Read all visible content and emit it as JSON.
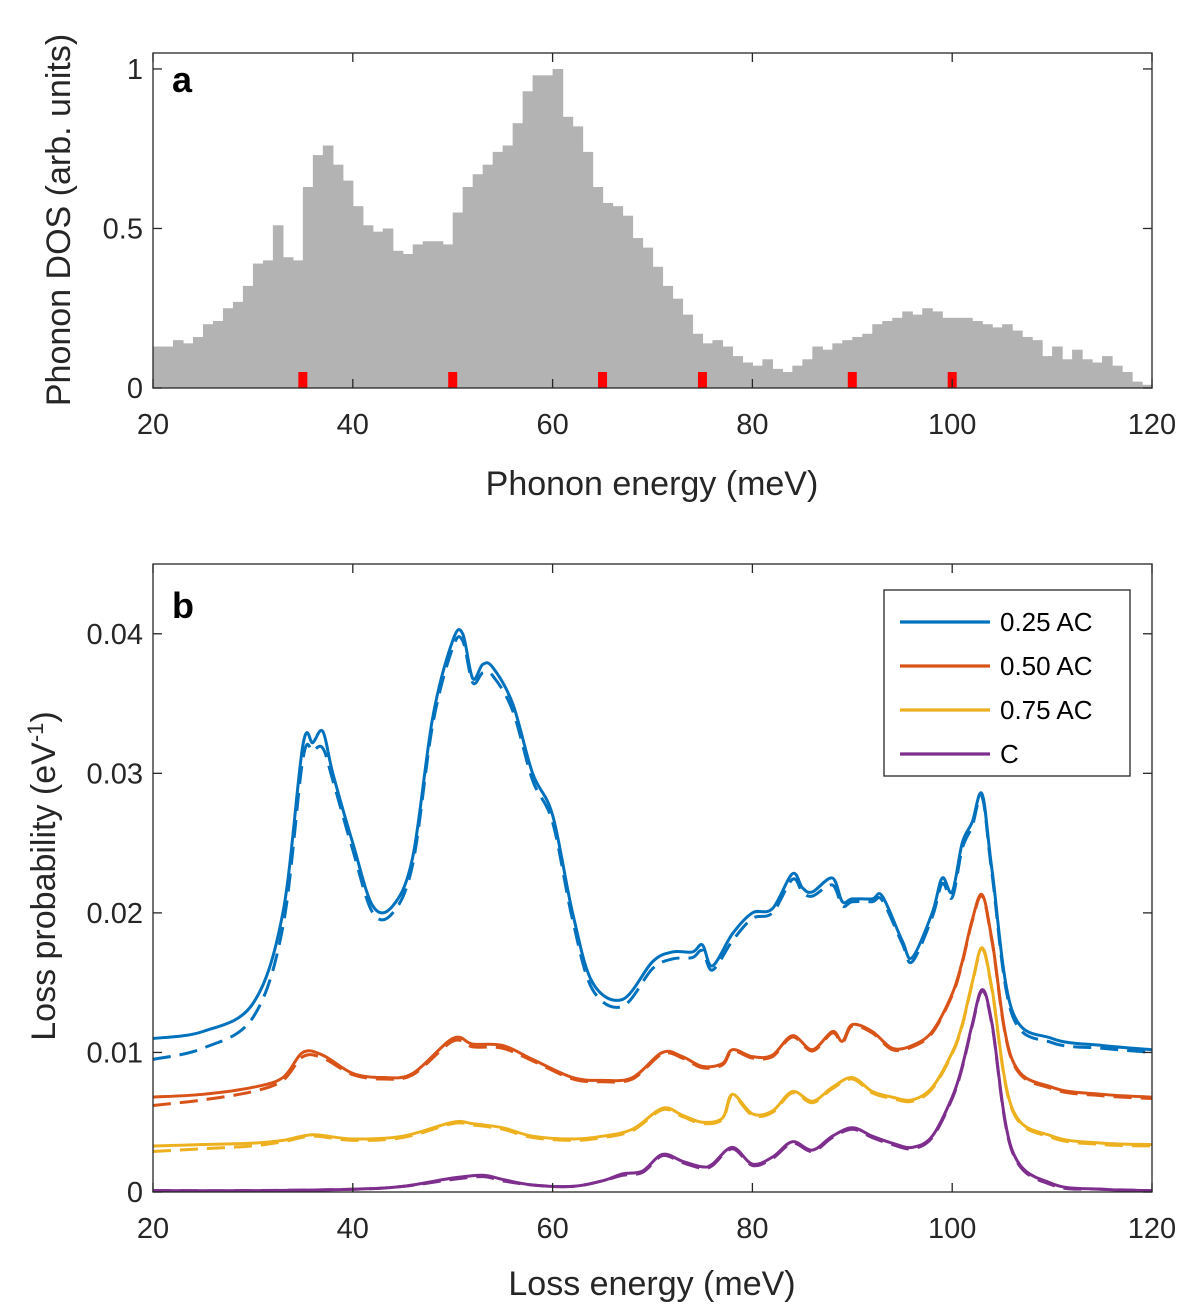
{
  "chart_data": [
    {
      "type": "bar",
      "panel_label": "a",
      "xlabel": "Phonon energy (meV)",
      "ylabel": "Phonon DOS (arb. units)",
      "xlim": [
        20,
        120
      ],
      "ylim": [
        0,
        1.05
      ],
      "xticks": [
        "20",
        "40",
        "60",
        "80",
        "100",
        "120"
      ],
      "yticks": [
        "0",
        "0.5",
        "1"
      ],
      "bar_color": "#b3b3b3",
      "marker_color": "#ff0000",
      "bin_start": 20,
      "bin_width": 1,
      "values": [
        0.13,
        0.13,
        0.15,
        0.14,
        0.16,
        0.2,
        0.21,
        0.25,
        0.27,
        0.32,
        0.39,
        0.4,
        0.51,
        0.41,
        0.4,
        0.63,
        0.73,
        0.76,
        0.7,
        0.65,
        0.57,
        0.51,
        0.49,
        0.5,
        0.43,
        0.42,
        0.45,
        0.46,
        0.46,
        0.45,
        0.55,
        0.63,
        0.67,
        0.7,
        0.74,
        0.76,
        0.83,
        0.93,
        0.98,
        0.98,
        1.0,
        0.85,
        0.82,
        0.74,
        0.63,
        0.58,
        0.57,
        0.54,
        0.47,
        0.44,
        0.38,
        0.32,
        0.28,
        0.23,
        0.17,
        0.14,
        0.15,
        0.13,
        0.1,
        0.08,
        0.07,
        0.09,
        0.06,
        0.05,
        0.07,
        0.09,
        0.13,
        0.12,
        0.14,
        0.15,
        0.16,
        0.17,
        0.2,
        0.21,
        0.22,
        0.24,
        0.23,
        0.25,
        0.24,
        0.22,
        0.22,
        0.22,
        0.21,
        0.2,
        0.19,
        0.2,
        0.18,
        0.16,
        0.15,
        0.1,
        0.13,
        0.09,
        0.12,
        0.09,
        0.08,
        0.1,
        0.07,
        0.05,
        0.02,
        0.01
      ],
      "markers": [
        35,
        50,
        65,
        75,
        90,
        100
      ]
    },
    {
      "type": "line",
      "panel_label": "b",
      "xlabel": "Loss energy (meV)",
      "ylabel": "Loss probability (eV",
      "ylabel_sup": "-1",
      "ylabel_end": ")",
      "xlim": [
        20,
        120
      ],
      "ylim": [
        0,
        0.045
      ],
      "xticks": [
        "20",
        "40",
        "60",
        "80",
        "100",
        "120"
      ],
      "yticks": [
        "0",
        "0.01",
        "0.02",
        "0.03",
        "0.04"
      ],
      "legend_position": "top-right",
      "series": [
        {
          "name": "0.25 AC",
          "color": "#0072bd",
          "x": [
            20,
            25,
            30,
            33,
            35,
            36,
            37,
            38,
            40,
            42,
            44,
            46,
            48,
            50,
            51,
            52,
            53,
            54,
            56,
            58,
            60,
            62,
            64,
            67,
            70,
            72,
            74,
            75,
            76,
            78,
            80,
            82,
            84,
            85,
            86,
            88,
            89,
            90,
            92,
            93,
            95,
            96,
            98,
            99,
            100,
            101,
            102,
            103,
            104,
            106,
            110,
            115,
            120
          ],
          "solid": [
            0.011,
            0.0115,
            0.0135,
            0.02,
            0.032,
            0.0322,
            0.033,
            0.03,
            0.025,
            0.0205,
            0.0205,
            0.024,
            0.034,
            0.0395,
            0.04,
            0.0368,
            0.0378,
            0.0376,
            0.035,
            0.03,
            0.027,
            0.02,
            0.015,
            0.0138,
            0.0165,
            0.0172,
            0.0172,
            0.0177,
            0.0162,
            0.0185,
            0.02,
            0.0203,
            0.0228,
            0.0218,
            0.0215,
            0.0225,
            0.0208,
            0.021,
            0.021,
            0.0212,
            0.018,
            0.0168,
            0.02,
            0.0225,
            0.0215,
            0.025,
            0.0265,
            0.0285,
            0.023,
            0.013,
            0.011,
            0.0105,
            0.0102
          ],
          "dashed": [
            0.0095,
            0.0103,
            0.0125,
            0.019,
            0.031,
            0.0316,
            0.0318,
            0.0295,
            0.0245,
            0.02,
            0.02,
            0.0235,
            0.0335,
            0.039,
            0.0395,
            0.0365,
            0.0372,
            0.037,
            0.0345,
            0.0295,
            0.0265,
            0.0195,
            0.0145,
            0.0133,
            0.016,
            0.0167,
            0.0168,
            0.0173,
            0.0159,
            0.018,
            0.0196,
            0.02,
            0.0224,
            0.0215,
            0.0212,
            0.022,
            0.0205,
            0.0208,
            0.0208,
            0.0209,
            0.0178,
            0.0165,
            0.0197,
            0.0221,
            0.0211,
            0.0246,
            0.0262,
            0.0283,
            0.0227,
            0.0127,
            0.0107,
            0.0103,
            0.01
          ]
        },
        {
          "name": "0.50 AC",
          "color": "#d95319",
          "x": [
            20,
            25,
            30,
            33,
            35,
            37,
            40,
            43,
            46,
            50,
            52,
            55,
            58,
            62,
            65,
            68,
            71,
            73,
            75,
            77,
            78,
            80,
            82,
            84,
            86,
            88,
            89,
            90,
            92,
            94,
            96,
            98,
            100,
            101,
            102,
            103,
            104,
            106,
            110,
            115,
            120
          ],
          "solid": [
            0.0068,
            0.007,
            0.0075,
            0.0082,
            0.01,
            0.0098,
            0.0085,
            0.0082,
            0.0085,
            0.011,
            0.0106,
            0.0105,
            0.0095,
            0.0082,
            0.008,
            0.0082,
            0.01,
            0.0097,
            0.009,
            0.0092,
            0.0102,
            0.0097,
            0.0098,
            0.0112,
            0.0102,
            0.0115,
            0.0108,
            0.012,
            0.0115,
            0.0103,
            0.0105,
            0.0115,
            0.0142,
            0.0165,
            0.0195,
            0.0213,
            0.018,
            0.0095,
            0.0075,
            0.007,
            0.0068
          ],
          "dashed": [
            0.0062,
            0.0066,
            0.0072,
            0.008,
            0.0097,
            0.0096,
            0.0084,
            0.0081,
            0.0084,
            0.0108,
            0.0104,
            0.0103,
            0.0094,
            0.0081,
            0.0079,
            0.0081,
            0.0099,
            0.0096,
            0.0089,
            0.0091,
            0.0101,
            0.0096,
            0.0097,
            0.0111,
            0.0101,
            0.0114,
            0.0107,
            0.0119,
            0.0114,
            0.0102,
            0.0104,
            0.0114,
            0.0141,
            0.0164,
            0.0194,
            0.0212,
            0.0179,
            0.0094,
            0.0074,
            0.0069,
            0.0067
          ]
        },
        {
          "name": "0.75 AC",
          "color": "#edb120",
          "x": [
            20,
            25,
            30,
            33,
            36,
            40,
            45,
            50,
            52,
            55,
            58,
            62,
            65,
            68,
            71,
            73,
            75,
            77,
            78,
            80,
            82,
            84,
            86,
            88,
            90,
            92,
            94,
            96,
            98,
            100,
            101,
            102,
            103,
            104,
            106,
            110,
            115,
            120
          ],
          "solid": [
            0.0033,
            0.0034,
            0.0035,
            0.0037,
            0.0041,
            0.0038,
            0.004,
            0.005,
            0.0049,
            0.0046,
            0.004,
            0.0038,
            0.004,
            0.0045,
            0.006,
            0.0055,
            0.005,
            0.0053,
            0.007,
            0.0056,
            0.0058,
            0.0072,
            0.0065,
            0.0075,
            0.0082,
            0.0072,
            0.0068,
            0.0066,
            0.0075,
            0.01,
            0.012,
            0.015,
            0.0175,
            0.0145,
            0.006,
            0.004,
            0.0035,
            0.0034
          ],
          "dashed": [
            0.0029,
            0.0031,
            0.0033,
            0.0036,
            0.004,
            0.0037,
            0.0039,
            0.0049,
            0.0048,
            0.0045,
            0.0039,
            0.0037,
            0.0039,
            0.0044,
            0.0059,
            0.0054,
            0.0049,
            0.0052,
            0.0069,
            0.0055,
            0.0057,
            0.0071,
            0.0064,
            0.0074,
            0.0081,
            0.0071,
            0.0067,
            0.0065,
            0.0074,
            0.0099,
            0.0119,
            0.0149,
            0.0174,
            0.0144,
            0.0059,
            0.0039,
            0.0034,
            0.0033
          ]
        },
        {
          "name": "C",
          "color": "#7e2f8e",
          "x": [
            20,
            30,
            40,
            45,
            50,
            53,
            55,
            58,
            62,
            65,
            67,
            69,
            71,
            73,
            75,
            76,
            78,
            80,
            82,
            84,
            86,
            88,
            90,
            92,
            94,
            96,
            98,
            100,
            101,
            102,
            103,
            104,
            106,
            110,
            115,
            120
          ],
          "solid": [
            0.0001,
            0.0001,
            0.0002,
            0.0004,
            0.001,
            0.0012,
            0.0009,
            0.0005,
            0.0004,
            0.0008,
            0.0013,
            0.0015,
            0.0027,
            0.0022,
            0.0018,
            0.002,
            0.0032,
            0.002,
            0.0025,
            0.0036,
            0.003,
            0.004,
            0.0046,
            0.004,
            0.0035,
            0.0032,
            0.004,
            0.0068,
            0.009,
            0.012,
            0.0145,
            0.012,
            0.003,
            0.0006,
            0.0002,
            0.0001
          ],
          "dashed": [
            0.0001,
            0.0001,
            0.0002,
            0.0004,
            0.0009,
            0.0011,
            0.0008,
            0.0005,
            0.0004,
            0.0008,
            0.0012,
            0.0014,
            0.0026,
            0.0021,
            0.0017,
            0.0019,
            0.0031,
            0.0019,
            0.0024,
            0.0035,
            0.0029,
            0.0039,
            0.0045,
            0.0039,
            0.0034,
            0.0031,
            0.0039,
            0.0067,
            0.0089,
            0.0119,
            0.0144,
            0.0119,
            0.0029,
            0.0005,
            0.0002,
            0.0001
          ]
        }
      ]
    }
  ]
}
